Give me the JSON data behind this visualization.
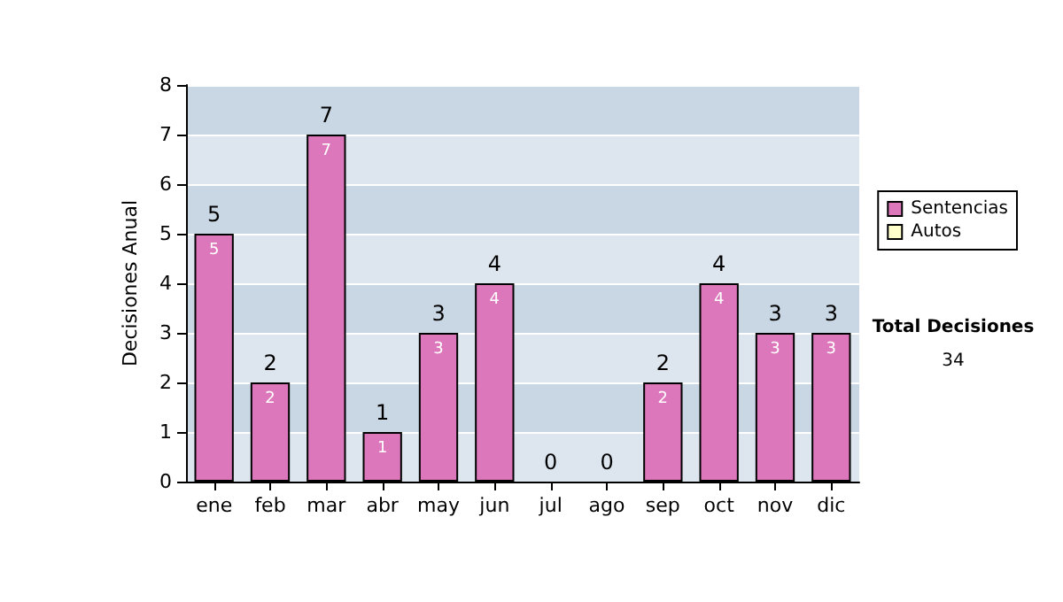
{
  "chart_data": {
    "type": "bar",
    "stacked": true,
    "ylabel": "Decisiones Anual",
    "categories": [
      "ene",
      "feb",
      "mar",
      "abr",
      "may",
      "jun",
      "jul",
      "ago",
      "sep",
      "oct",
      "nov",
      "dic"
    ],
    "series": [
      {
        "name": "Sentencias",
        "color": "#dd77bb",
        "values": [
          5,
          2,
          7,
          1,
          3,
          4,
          0,
          0,
          2,
          4,
          3,
          3
        ],
        "value_labels": [
          "5",
          "2",
          "7",
          "1",
          "3",
          "4",
          null,
          null,
          "2",
          "4",
          "3",
          "3"
        ]
      },
      {
        "name": "Autos",
        "color": "#ffffcc",
        "values": [
          0,
          0,
          0,
          0,
          0,
          0,
          0,
          0,
          0,
          0,
          0,
          0
        ]
      }
    ],
    "totals": [
      "5",
      "2",
      "7",
      "1",
      "3",
      "4",
      "0",
      "0",
      "2",
      "4",
      "3",
      "3"
    ],
    "ylim": [
      0,
      8
    ],
    "yticks": [
      0,
      1,
      2,
      3,
      4,
      5,
      6,
      7,
      8
    ],
    "grid": "y",
    "legend": "right",
    "annotations": [
      "Total Decisiones",
      "34"
    ]
  }
}
